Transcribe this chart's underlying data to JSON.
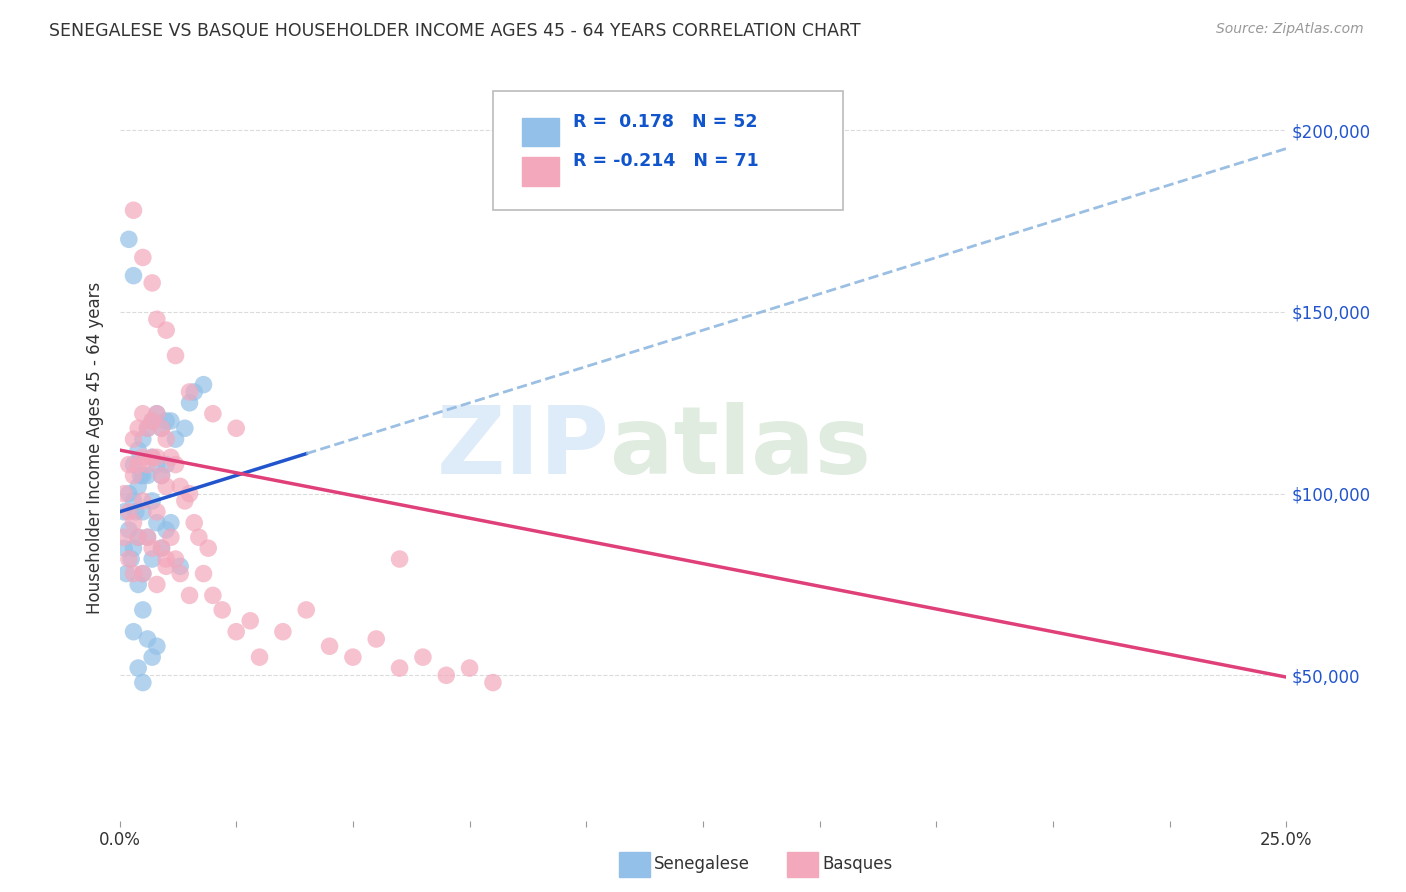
{
  "title": "SENEGALESE VS BASQUE HOUSEHOLDER INCOME AGES 45 - 64 YEARS CORRELATION CHART",
  "source": "Source: ZipAtlas.com",
  "ylabel": "Householder Income Ages 45 - 64 years",
  "yticks": [
    50000,
    100000,
    150000,
    200000
  ],
  "ytick_labels": [
    "$50,000",
    "$100,000",
    "$150,000",
    "$200,000"
  ],
  "xmin": 0.0,
  "xmax": 0.25,
  "ymin": 10000,
  "ymax": 215000,
  "legend_line1": "R =  0.178   N = 52",
  "legend_line2": "R = -0.214   N = 71",
  "senegalese_color": "#92c0e8",
  "basque_color": "#f4a8bc",
  "senegalese_trend_color": "#2255cc",
  "basque_trend_color": "#e0407a",
  "dashed_line_color": "#90b8e0",
  "legend_text_color": "#1155cc",
  "background_color": "#ffffff",
  "grid_color": "#cccccc",
  "sen_intercept": 95000,
  "sen_slope": 400000,
  "bas_intercept": 112000,
  "bas_slope": -250000,
  "sen_x": [
    0.001,
    0.001,
    0.0015,
    0.002,
    0.002,
    0.0025,
    0.003,
    0.003,
    0.003,
    0.0035,
    0.004,
    0.004,
    0.004,
    0.0045,
    0.005,
    0.005,
    0.005,
    0.005,
    0.006,
    0.006,
    0.006,
    0.007,
    0.007,
    0.007,
    0.007,
    0.008,
    0.008,
    0.008,
    0.009,
    0.009,
    0.009,
    0.01,
    0.01,
    0.01,
    0.011,
    0.011,
    0.012,
    0.013,
    0.014,
    0.015,
    0.016,
    0.018,
    0.002,
    0.003,
    0.004,
    0.005,
    0.006,
    0.007,
    0.008,
    0.003,
    0.004,
    0.005
  ],
  "sen_y": [
    95000,
    85000,
    78000,
    100000,
    90000,
    82000,
    108000,
    98000,
    85000,
    95000,
    112000,
    102000,
    88000,
    105000,
    115000,
    105000,
    95000,
    78000,
    118000,
    105000,
    88000,
    120000,
    110000,
    98000,
    82000,
    122000,
    108000,
    92000,
    118000,
    105000,
    85000,
    120000,
    108000,
    90000,
    120000,
    92000,
    115000,
    80000,
    118000,
    125000,
    128000,
    130000,
    170000,
    160000,
    75000,
    68000,
    60000,
    55000,
    58000,
    62000,
    52000,
    48000
  ],
  "bas_x": [
    0.001,
    0.001,
    0.002,
    0.002,
    0.002,
    0.003,
    0.003,
    0.003,
    0.003,
    0.004,
    0.004,
    0.004,
    0.005,
    0.005,
    0.005,
    0.005,
    0.006,
    0.006,
    0.006,
    0.007,
    0.007,
    0.007,
    0.008,
    0.008,
    0.008,
    0.008,
    0.009,
    0.009,
    0.009,
    0.01,
    0.01,
    0.01,
    0.011,
    0.011,
    0.012,
    0.012,
    0.013,
    0.013,
    0.014,
    0.015,
    0.015,
    0.016,
    0.017,
    0.018,
    0.019,
    0.02,
    0.022,
    0.025,
    0.028,
    0.03,
    0.035,
    0.04,
    0.045,
    0.05,
    0.055,
    0.06,
    0.065,
    0.07,
    0.075,
    0.08,
    0.003,
    0.005,
    0.007,
    0.008,
    0.01,
    0.012,
    0.015,
    0.02,
    0.025,
    0.06,
    0.01
  ],
  "bas_y": [
    100000,
    88000,
    108000,
    95000,
    82000,
    115000,
    105000,
    92000,
    78000,
    118000,
    108000,
    88000,
    122000,
    110000,
    98000,
    78000,
    118000,
    108000,
    88000,
    120000,
    110000,
    85000,
    122000,
    110000,
    95000,
    75000,
    118000,
    105000,
    85000,
    115000,
    102000,
    82000,
    110000,
    88000,
    108000,
    82000,
    102000,
    78000,
    98000,
    100000,
    72000,
    92000,
    88000,
    78000,
    85000,
    72000,
    68000,
    62000,
    65000,
    55000,
    62000,
    68000,
    58000,
    55000,
    60000,
    52000,
    55000,
    50000,
    52000,
    48000,
    178000,
    165000,
    158000,
    148000,
    145000,
    138000,
    128000,
    122000,
    118000,
    82000,
    80000
  ]
}
